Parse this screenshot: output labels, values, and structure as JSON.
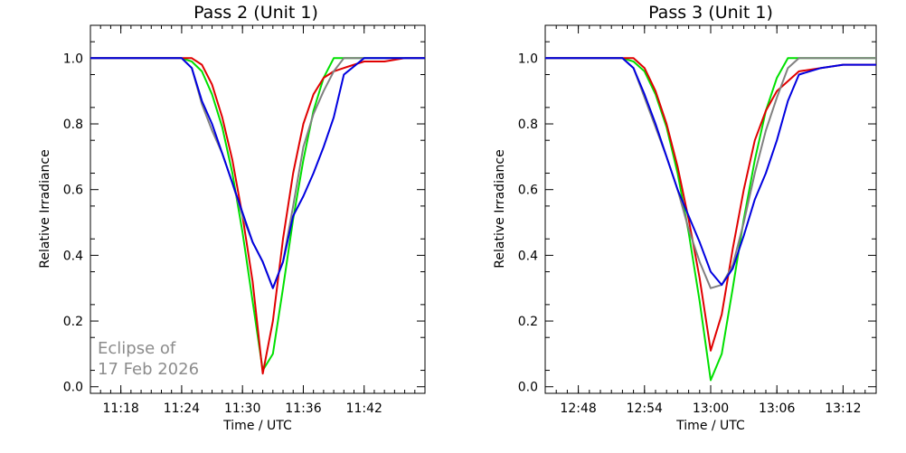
{
  "chart_data": [
    {
      "type": "line",
      "title": "Pass 2 (Unit 1)",
      "xlabel": "Time / UTC",
      "ylabel": "Relative Irradiance",
      "xlim": [
        "11:15",
        "11:48"
      ],
      "ylim": [
        -0.02,
        1.1
      ],
      "x_ticks": [
        "11:18",
        "11:24",
        "11:30",
        "11:36",
        "11:42"
      ],
      "y_ticks": [
        "0.0",
        "0.2",
        "0.4",
        "0.6",
        "0.8",
        "1.0"
      ],
      "grid": false,
      "legend": null,
      "annotation": [
        "Eclipse of",
        "17 Feb 2026"
      ],
      "annotation_color": "#8c8c8c",
      "series": [
        {
          "color": "#00e000",
          "x": [
            "11:15",
            "11:22",
            "11:23",
            "11:24",
            "11:25",
            "11:26",
            "11:27",
            "11:28",
            "11:29",
            "11:30",
            "11:31",
            "11:32",
            "11:33",
            "11:34",
            "11:35",
            "11:36",
            "11:37",
            "11:38",
            "11:39",
            "11:48"
          ],
          "y": [
            1.0,
            1.0,
            1.0,
            1.0,
            0.99,
            0.96,
            0.89,
            0.79,
            0.65,
            0.47,
            0.26,
            0.05,
            0.1,
            0.3,
            0.51,
            0.69,
            0.84,
            0.94,
            1.0,
            1.0
          ]
        },
        {
          "color": "#e00000",
          "x": [
            "11:15",
            "11:22",
            "11:23",
            "11:24",
            "11:25",
            "11:26",
            "11:27",
            "11:28",
            "11:29",
            "11:30",
            "11:31",
            "11:32",
            "11:33",
            "11:34",
            "11:35",
            "11:36",
            "11:37",
            "11:38",
            "11:39",
            "11:40",
            "11:42",
            "11:44",
            "11:46",
            "11:48"
          ],
          "y": [
            1.0,
            1.0,
            1.0,
            1.0,
            1.0,
            0.98,
            0.92,
            0.82,
            0.69,
            0.52,
            0.32,
            0.04,
            0.2,
            0.45,
            0.65,
            0.8,
            0.89,
            0.94,
            0.96,
            0.97,
            0.99,
            0.99,
            1.0,
            1.0
          ]
        },
        {
          "color": "#808080",
          "x": [
            "11:15",
            "11:22",
            "11:23",
            "11:24",
            "11:25",
            "11:26",
            "11:27",
            "11:28",
            "11:29",
            "11:30",
            "11:31",
            "11:32",
            "11:33",
            "11:34",
            "11:35",
            "11:36",
            "11:37",
            "11:38",
            "11:39",
            "11:40",
            "11:42",
            "11:45",
            "11:48"
          ],
          "y": [
            1.0,
            1.0,
            1.0,
            1.0,
            0.97,
            0.86,
            0.78,
            0.71,
            0.62,
            0.52,
            0.44,
            0.38,
            0.3,
            0.38,
            0.55,
            0.73,
            0.83,
            0.9,
            0.96,
            1.0,
            1.0,
            1.0,
            1.0
          ]
        },
        {
          "color": "#0000e0",
          "x": [
            "11:15",
            "11:22",
            "11:23",
            "11:24",
            "11:25",
            "11:26",
            "11:27",
            "11:28",
            "11:29",
            "11:30",
            "11:31",
            "11:32",
            "11:33",
            "11:34",
            "11:35",
            "11:36",
            "11:37",
            "11:38",
            "11:39",
            "11:40",
            "11:42",
            "11:44",
            "11:46",
            "11:48"
          ],
          "y": [
            1.0,
            1.0,
            1.0,
            1.0,
            0.97,
            0.87,
            0.8,
            0.71,
            0.62,
            0.53,
            0.44,
            0.38,
            0.3,
            0.38,
            0.52,
            0.58,
            0.65,
            0.73,
            0.82,
            0.95,
            1.0,
            1.0,
            1.0,
            1.0
          ]
        }
      ]
    },
    {
      "type": "line",
      "title": "Pass 3 (Unit 1)",
      "xlabel": "Time / UTC",
      "ylabel": "Relative Irradiance",
      "xlim": [
        "12:45",
        "13:15"
      ],
      "ylim": [
        -0.02,
        1.1
      ],
      "x_ticks": [
        "12:48",
        "12:54",
        "13:00",
        "13:06",
        "13:12"
      ],
      "y_ticks": [
        "0.0",
        "0.2",
        "0.4",
        "0.6",
        "0.8",
        "1.0"
      ],
      "grid": false,
      "legend": null,
      "series": [
        {
          "color": "#00e000",
          "x": [
            "12:45",
            "12:52",
            "12:53",
            "12:54",
            "12:55",
            "12:56",
            "12:57",
            "12:58",
            "12:59",
            "13:00",
            "13:01",
            "13:02",
            "13:03",
            "13:04",
            "13:05",
            "13:06",
            "13:07",
            "13:15"
          ],
          "y": [
            1.0,
            1.0,
            0.99,
            0.96,
            0.89,
            0.79,
            0.65,
            0.47,
            0.26,
            0.02,
            0.1,
            0.3,
            0.51,
            0.69,
            0.84,
            0.94,
            1.0,
            1.0
          ]
        },
        {
          "color": "#e00000",
          "x": [
            "12:45",
            "12:52",
            "12:53",
            "12:54",
            "12:55",
            "12:56",
            "12:57",
            "12:58",
            "12:59",
            "13:00",
            "13:01",
            "13:02",
            "13:03",
            "13:04",
            "13:05",
            "13:06",
            "13:07",
            "13:08",
            "13:10",
            "13:12",
            "13:15"
          ],
          "y": [
            1.0,
            1.0,
            1.0,
            0.97,
            0.9,
            0.8,
            0.67,
            0.51,
            0.33,
            0.11,
            0.22,
            0.42,
            0.6,
            0.75,
            0.84,
            0.9,
            0.93,
            0.96,
            0.97,
            0.98,
            0.98
          ]
        },
        {
          "color": "#808080",
          "x": [
            "12:45",
            "12:52",
            "12:53",
            "12:54",
            "12:55",
            "12:56",
            "12:57",
            "12:58",
            "12:59",
            "13:00",
            "13:01",
            "13:02",
            "13:03",
            "13:04",
            "13:05",
            "13:06",
            "13:07",
            "13:08",
            "13:10",
            "13:15"
          ],
          "y": [
            1.0,
            1.0,
            0.97,
            0.88,
            0.79,
            0.7,
            0.6,
            0.48,
            0.38,
            0.3,
            0.31,
            0.37,
            0.5,
            0.65,
            0.78,
            0.88,
            0.97,
            1.0,
            1.0,
            1.0
          ]
        },
        {
          "color": "#0000e0",
          "x": [
            "12:45",
            "12:52",
            "12:53",
            "12:54",
            "12:55",
            "12:56",
            "12:57",
            "12:58",
            "12:59",
            "13:00",
            "13:01",
            "13:02",
            "13:03",
            "13:04",
            "13:05",
            "13:06",
            "13:07",
            "13:08",
            "13:10",
            "13:12",
            "13:15"
          ],
          "y": [
            1.0,
            1.0,
            0.97,
            0.89,
            0.8,
            0.7,
            0.6,
            0.52,
            0.44,
            0.35,
            0.31,
            0.36,
            0.46,
            0.57,
            0.65,
            0.75,
            0.87,
            0.95,
            0.97,
            0.98,
            0.98
          ]
        }
      ]
    }
  ]
}
